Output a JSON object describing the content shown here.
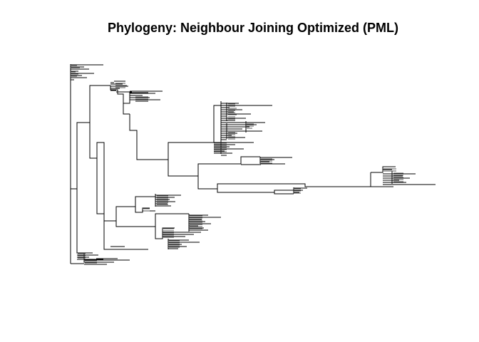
{
  "figure": {
    "title": "Phylogeny: Neighbour Joining Optimized (PML)",
    "type": "phylogram",
    "tip_labels_shown": false,
    "axes_shown": false,
    "line_color": "#000000",
    "background_color": "#ffffff"
  }
}
